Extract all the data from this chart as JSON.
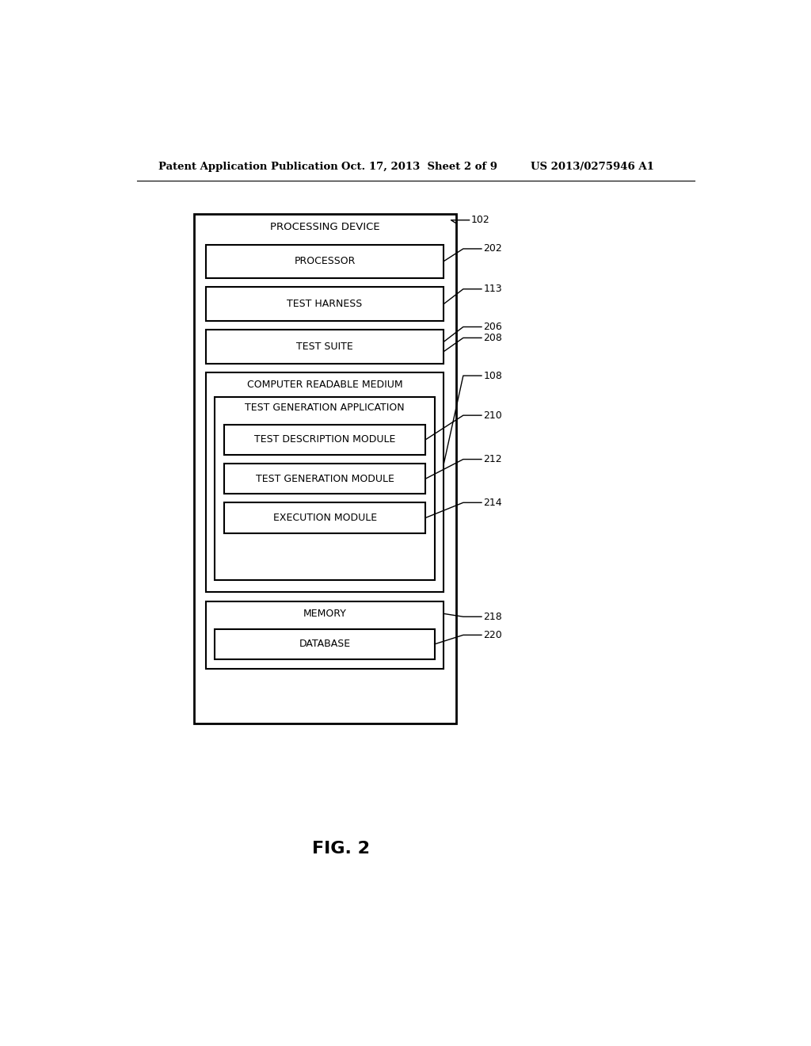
{
  "bg_color": "#ffffff",
  "header_left": "Patent Application Publication",
  "header_mid": "Oct. 17, 2013  Sheet 2 of 9",
  "header_right": "US 2013/0275946 A1",
  "figure_label": "FIG. 2",
  "font_size_header": 9.5,
  "font_size_box": 9,
  "font_size_ref": 9,
  "font_size_fig": 16
}
